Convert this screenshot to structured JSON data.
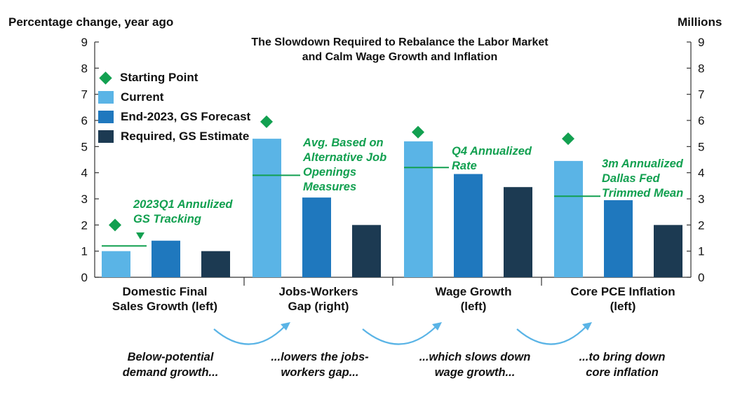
{
  "chart_data": {
    "type": "bar",
    "title": "The Slowdown Required to Rebalance the Labor Market and Calm Wage Growth and Inflation",
    "title_lines": [
      "The Slowdown Required to Rebalance the Labor Market",
      "and Calm Wage Growth and Inflation"
    ],
    "ylabel_left": "Percentage change, year ago",
    "ylabel_right": "Millions",
    "ylim": [
      0,
      9
    ],
    "yticks": [
      0,
      1,
      2,
      3,
      4,
      5,
      6,
      7,
      8,
      9
    ],
    "categories": [
      {
        "lines": [
          "Domestic Final",
          "Sales Growth (left)"
        ]
      },
      {
        "lines": [
          "Jobs-Workers",
          "Gap (right)"
        ]
      },
      {
        "lines": [
          "Wage Growth",
          "(left)"
        ]
      },
      {
        "lines": [
          "Core PCE Inflation",
          "(left)"
        ]
      }
    ],
    "series": [
      {
        "name": "Current",
        "color": "#5ab4e6",
        "values": [
          1.0,
          5.3,
          5.2,
          4.45
        ]
      },
      {
        "name": "End-2023, GS Forecast",
        "color": "#1f78be",
        "values": [
          1.4,
          3.05,
          3.95,
          2.95
        ]
      },
      {
        "name": "Required, GS Estimate",
        "color": "#1c3a52",
        "values": [
          1.0,
          2.0,
          3.45,
          2.0
        ]
      }
    ],
    "starting_point": {
      "name": "Starting Point",
      "color": "#12a050",
      "values": [
        2.0,
        5.95,
        5.55,
        5.3
      ]
    },
    "reference_lines": [
      1.2,
      3.9,
      4.2,
      3.1
    ],
    "annotations": [
      {
        "lines": [
          "2023Q1 Annulized",
          "GS Tracking"
        ]
      },
      {
        "lines": [
          "Avg. Based on",
          "Alternative Job",
          "Openings",
          "Measures"
        ]
      },
      {
        "lines": [
          "Q4 Annualized",
          "Rate"
        ]
      },
      {
        "lines": [
          "3m Annualized",
          "Dallas Fed",
          "Trimmed Mean"
        ]
      }
    ],
    "legend": [
      "Starting Point",
      "Current",
      "End-2023, GS Forecast",
      "Required, GS Estimate"
    ],
    "legend_position": "top-left",
    "captions": [
      {
        "lines": [
          "Below-potential",
          "demand growth..."
        ]
      },
      {
        "lines": [
          "...lowers the jobs-",
          "workers gap..."
        ]
      },
      {
        "lines": [
          "...which slows down",
          "wage growth..."
        ]
      },
      {
        "lines": [
          "...to bring down",
          "core inflation"
        ]
      }
    ],
    "arrow_color": "#5ab4e6",
    "annotation_color": "#12a050"
  }
}
